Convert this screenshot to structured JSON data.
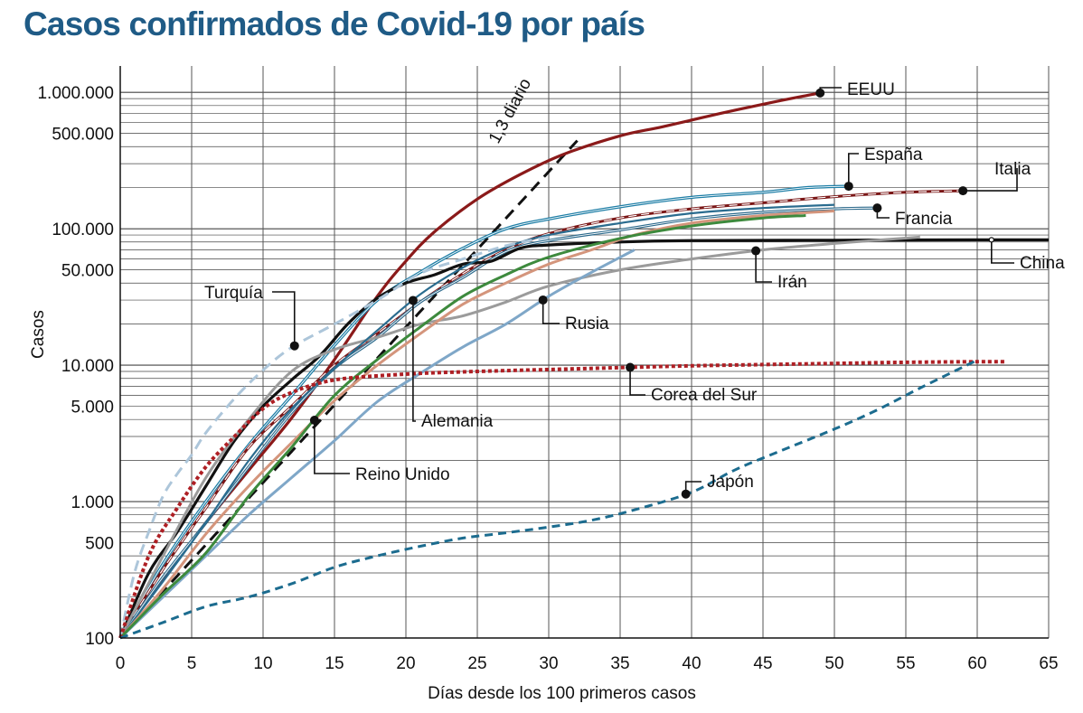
{
  "chart_data": {
    "type": "line",
    "title": "Casos confirmados de Covid-19 por país",
    "xlabel": "Días desde los 100 primeros casos",
    "ylabel": "Casos",
    "yscale": "log",
    "xlim": [
      0,
      65
    ],
    "ylim": [
      100,
      1300000
    ],
    "x_ticks": [
      0,
      5,
      10,
      15,
      20,
      25,
      30,
      35,
      40,
      45,
      50,
      55,
      60,
      65
    ],
    "y_ticks": [
      {
        "value": 100,
        "label": "100"
      },
      {
        "value": 500,
        "label": "500"
      },
      {
        "value": 1000,
        "label": "1.000"
      },
      {
        "value": 5000,
        "label": "5.000"
      },
      {
        "value": 10000,
        "label": "10.000"
      },
      {
        "value": 50000,
        "label": "50.000"
      },
      {
        "value": 100000,
        "label": "100.000"
      },
      {
        "value": 500000,
        "label": "500.000"
      },
      {
        "value": 1000000,
        "label": "1.000.000"
      }
    ],
    "guide": {
      "name": "1,3 diario",
      "label": "1,3 diario",
      "growth": 1.3,
      "x": [
        0,
        32
      ]
    },
    "series": [
      {
        "name": "EEUU",
        "label": "EEUU",
        "color": "#8b1a1a",
        "width": 3.2,
        "dash": "",
        "x": [
          0,
          3,
          6,
          9,
          12,
          15,
          18,
          20,
          22,
          25,
          28,
          31,
          35,
          38,
          42,
          46,
          49
        ],
        "y": [
          100,
          270,
          700,
          1700,
          4100,
          11000,
          32000,
          58000,
          95000,
          165000,
          250000,
          350000,
          480000,
          560000,
          700000,
          860000,
          990000
        ],
        "marker_x": 49
      },
      {
        "name": "España",
        "label": "España",
        "color": "#1e7ea6",
        "width": 2.8,
        "dash": "",
        "x": [
          0,
          3,
          6,
          9,
          12,
          15,
          18,
          21,
          24,
          27,
          30,
          35,
          40,
          45,
          48,
          51
        ],
        "y": [
          100,
          350,
          1000,
          2600,
          6000,
          14000,
          30000,
          48000,
          72000,
          100000,
          118000,
          145000,
          170000,
          185000,
          200000,
          205000
        ],
        "marker_x": 51
      },
      {
        "name": "Italia",
        "label": "Italia",
        "color": "#b5262b",
        "width": 3,
        "dash": "9 5",
        "x": [
          0,
          3,
          6,
          9,
          12,
          15,
          18,
          21,
          24,
          27,
          30,
          35,
          40,
          45,
          50,
          55,
          59
        ],
        "y": [
          100,
          320,
          900,
          2500,
          5000,
          10000,
          17000,
          29000,
          47000,
          70000,
          92000,
          120000,
          140000,
          155000,
          172000,
          185000,
          190000
        ],
        "marker_x": 59
      },
      {
        "name": "Francia",
        "label": "Francia",
        "color": "#2c6a8c",
        "width": 2.6,
        "dash": "",
        "x": [
          0,
          3,
          6,
          9,
          12,
          15,
          18,
          21,
          24,
          27,
          30,
          35,
          40,
          45,
          50,
          53
        ],
        "y": [
          100,
          280,
          700,
          1800,
          4500,
          9500,
          16000,
          29000,
          44000,
          68000,
          82000,
          98000,
          118000,
          132000,
          140000,
          142000
        ],
        "marker_x": 53
      },
      {
        "name": "China",
        "label": "China",
        "color": "#111111",
        "width": 3.2,
        "dash": "",
        "x": [
          0,
          2,
          4,
          6,
          8,
          10,
          12,
          14,
          16,
          18,
          20,
          22,
          24,
          26,
          28,
          30,
          35,
          40,
          50,
          60,
          65
        ],
        "y": [
          100,
          300,
          600,
          1300,
          2800,
          5000,
          7800,
          11800,
          20400,
          31000,
          40000,
          46000,
          55000,
          58000,
          72000,
          76000,
          80000,
          82000,
          82500,
          83000,
          83000
        ],
        "marker_x": 61
      },
      {
        "name": "Irán",
        "label": "Irán",
        "color": "#9b9b9b",
        "width": 3,
        "dash": "",
        "x": [
          0,
          3,
          6,
          9,
          12,
          15,
          18,
          21,
          24,
          27,
          30,
          35,
          40,
          45,
          50,
          56
        ],
        "y": [
          100,
          400,
          1500,
          4000,
          9000,
          13000,
          16000,
          20000,
          23000,
          29000,
          38000,
          50000,
          60000,
          70000,
          78000,
          87000
        ],
        "marker_x": 44.5
      },
      {
        "name": "Alemania",
        "label": "Alemania",
        "color": "#2a6c8f",
        "width": 2.2,
        "dash": "",
        "x": [
          0,
          3,
          6,
          9,
          12,
          15,
          18,
          21,
          24,
          27,
          30,
          35,
          40,
          45,
          50
        ],
        "y": [
          100,
          260,
          700,
          2000,
          4800,
          9500,
          18000,
          33000,
          52000,
          73000,
          90000,
          110000,
          130000,
          142000,
          150000
        ],
        "marker_x": 20.5
      },
      {
        "name": "Reino Unido",
        "label": "Reino Unido",
        "color": "#d4957c",
        "width": 3,
        "dash": "",
        "x": [
          0,
          3,
          6,
          9,
          12,
          15,
          18,
          21,
          24,
          27,
          30,
          33,
          36,
          40,
          45,
          50
        ],
        "y": [
          100,
          230,
          580,
          1300,
          2700,
          5500,
          10000,
          17000,
          28000,
          40000,
          55000,
          70000,
          90000,
          110000,
          125000,
          135000
        ],
        "marker_x": 13.6
      },
      {
        "name": "Turquía",
        "label": "Turquía",
        "color": "#adc6da",
        "width": 3,
        "dash": "12 7",
        "x": [
          0,
          1,
          2,
          3,
          4,
          5,
          6,
          8,
          10,
          12,
          15,
          18,
          21,
          24,
          27,
          30
        ],
        "y": [
          100,
          300,
          600,
          1100,
          1600,
          2200,
          3200,
          5700,
          9200,
          13500,
          20000,
          30000,
          47000,
          60000,
          75000,
          87000
        ],
        "marker_x": 12.2
      },
      {
        "name": "Rusia",
        "label": "Rusia",
        "color": "#7fa7c8",
        "width": 3,
        "dash": "",
        "x": [
          0,
          3,
          6,
          9,
          12,
          15,
          18,
          21,
          24,
          27,
          30,
          33,
          36
        ],
        "y": [
          100,
          200,
          400,
          800,
          1500,
          2800,
          5400,
          8700,
          13600,
          20000,
          32000,
          48000,
          70000
        ],
        "marker_x": 29.6
      },
      {
        "name": "Verde",
        "label": "",
        "color": "#3d8a3d",
        "width": 3,
        "dash": "",
        "x": [
          0,
          3,
          6,
          9,
          12,
          15,
          18,
          21,
          24,
          27,
          30,
          35,
          40,
          45,
          48
        ],
        "y": [
          100,
          210,
          420,
          1100,
          2500,
          6000,
          11000,
          19000,
          32000,
          46000,
          62000,
          85000,
          105000,
          120000,
          125000
        ]
      },
      {
        "name": "Corea del Sur",
        "label": "Corea del Sur",
        "color": "#ae1f24",
        "width": 4,
        "dash": "4 3",
        "x": [
          0,
          2,
          4,
          6,
          8,
          10,
          12,
          15,
          20,
          25,
          30,
          35,
          40,
          45,
          50,
          55,
          60,
          62
        ],
        "y": [
          100,
          400,
          900,
          1800,
          3000,
          4800,
          6300,
          7800,
          8600,
          9000,
          9300,
          9600,
          9900,
          10100,
          10300,
          10500,
          10600,
          10600
        ],
        "marker_x": 35.7
      },
      {
        "name": "Japón",
        "label": "Japón",
        "color": "#1c6c8f",
        "width": 3,
        "dash": "9 6",
        "x": [
          0,
          3,
          6,
          9,
          12,
          15,
          18,
          21,
          24,
          27,
          30,
          33,
          36,
          40,
          43,
          46,
          50,
          53,
          56,
          60
        ],
        "y": [
          100,
          130,
          170,
          200,
          250,
          330,
          400,
          470,
          540,
          590,
          650,
          730,
          870,
          1170,
          1700,
          2300,
          3400,
          4700,
          6800,
          10900
        ],
        "marker_x": 39.6
      }
    ]
  }
}
